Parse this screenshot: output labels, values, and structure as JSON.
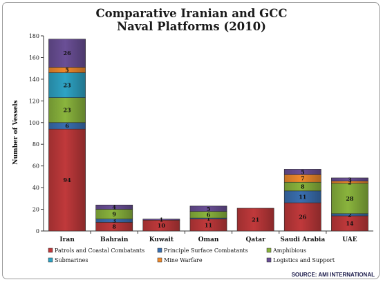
{
  "chart_data": {
    "type": "bar",
    "stacked": true,
    "title": [
      "Comparative Iranian and GCC",
      "Naval Platforms (2010)"
    ],
    "ylabel": "Number of Vessels",
    "xlabel": "",
    "ylim": [
      0,
      180
    ],
    "yticks": [
      0,
      20,
      40,
      60,
      80,
      100,
      120,
      140,
      160,
      180
    ],
    "categories": [
      "Iran",
      "Bahrain",
      "Kuwait",
      "Oman",
      "Qatar",
      "Saudi Arabia",
      "UAE"
    ],
    "series": [
      {
        "name": "Patrols and Coastal Combatants",
        "color": "#c0393b",
        "values": [
          94,
          8,
          10,
          11,
          21,
          26,
          14
        ]
      },
      {
        "name": "Principle Surface Combatants",
        "color": "#3a6fb0",
        "values": [
          6,
          3,
          0,
          1,
          0,
          11,
          2
        ]
      },
      {
        "name": "Amphibious",
        "color": "#8ab43d",
        "values": [
          23,
          9,
          0,
          6,
          0,
          8,
          28
        ]
      },
      {
        "name": "Submarines",
        "color": "#2ea3c4",
        "values": [
          23,
          0,
          0,
          0,
          0,
          0,
          0
        ]
      },
      {
        "name": "Mine Warfare",
        "color": "#f08a2c",
        "values": [
          5,
          0,
          0,
          0,
          0,
          7,
          2
        ]
      },
      {
        "name": "Logistics and Support",
        "color": "#6a4f96",
        "values": [
          26,
          4,
          1,
          5,
          0,
          5,
          3
        ]
      }
    ],
    "grid": false,
    "legend_position": "bottom"
  },
  "source": "SOURCE: AMI INTERNATIONAL"
}
